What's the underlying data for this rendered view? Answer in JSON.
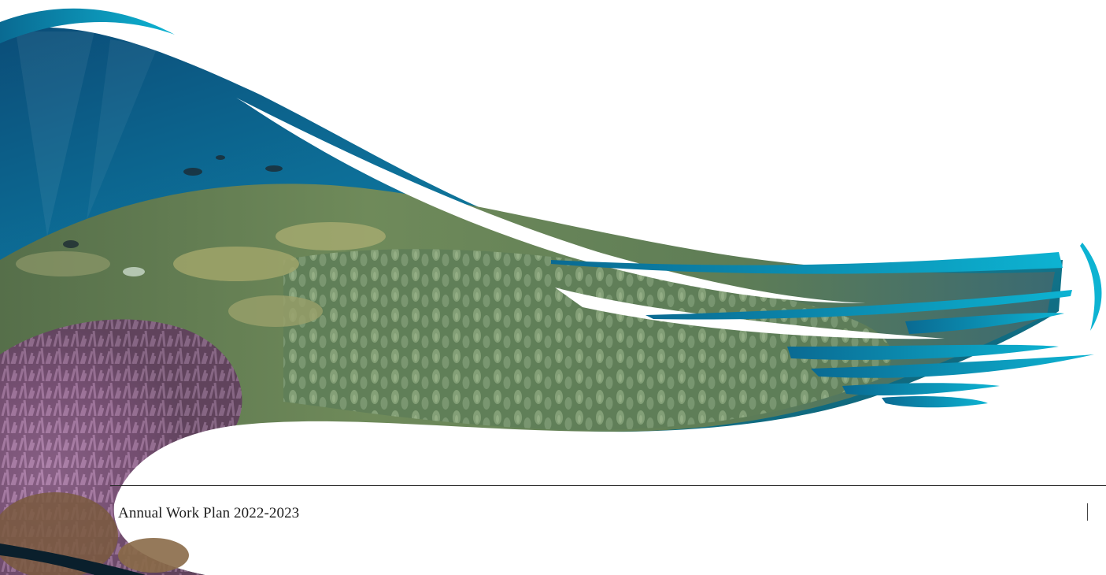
{
  "document": {
    "footer_title": "Annual Work Plan 2022-2023"
  },
  "colors": {
    "accent_teal": "#0aa2c4",
    "deep_ocean": "#0a4e72",
    "coral_green": "#6d8a5a",
    "coral_purple": "#8a5f86",
    "text": "#1d1d1d"
  },
  "image": {
    "subject": "reef-photo"
  }
}
